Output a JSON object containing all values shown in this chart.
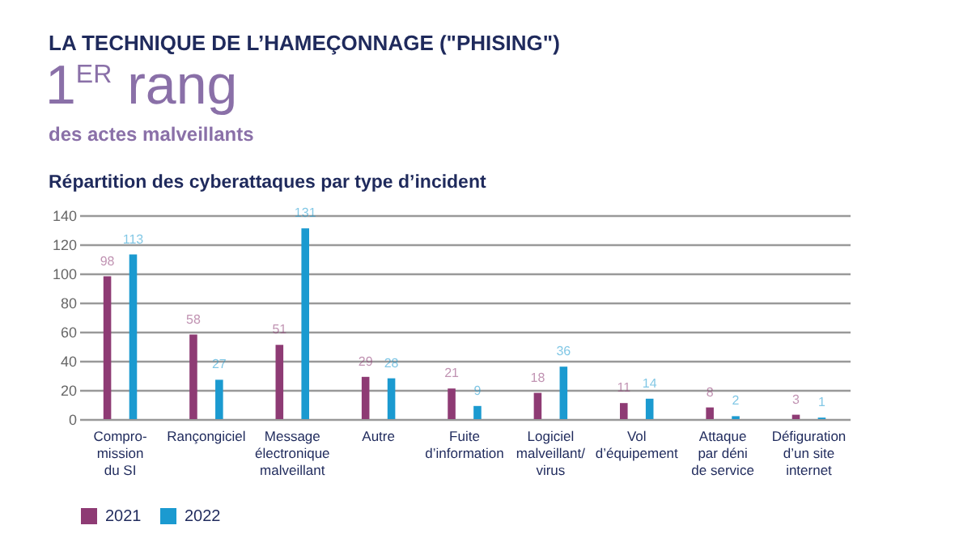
{
  "chart_data": {
    "type": "bar",
    "title": "LA TECHNIQUE DE L’HAMEÇONNAGE (\"PHISING\")",
    "subtitle": "Répartition des cyberattaques par type d’incident",
    "annotations": [
      "1$^{ER}$ rang",
      "des actes malveillants"
    ],
    "categories": [
      "Compro-\nmission\ndu SI",
      "Rançongiciel",
      "Message\nélectronique\nmalveillant",
      "Autre",
      "Fuite\nd’information",
      "Logiciel\nmalveillant/\nvirus",
      "Vol\nd’équipement",
      "Attaque\npar déni\nde service",
      "Défiguration\nd’un site\ninternet"
    ],
    "series": [
      {
        "name": "2021",
        "color": "#8e3b74",
        "values": [
          98,
          58,
          51,
          29,
          21,
          18,
          11,
          8,
          3
        ]
      },
      {
        "name": "2022",
        "color": "#1b9ad0",
        "values": [
          113,
          27,
          131,
          28,
          9,
          36,
          14,
          2,
          1
        ]
      }
    ],
    "ylim": [
      0,
      140
    ],
    "yticks": [
      0,
      20,
      40,
      60,
      80,
      100,
      120,
      140
    ],
    "grid": "y",
    "legend": "bottom",
    "data_labels": true
  }
}
